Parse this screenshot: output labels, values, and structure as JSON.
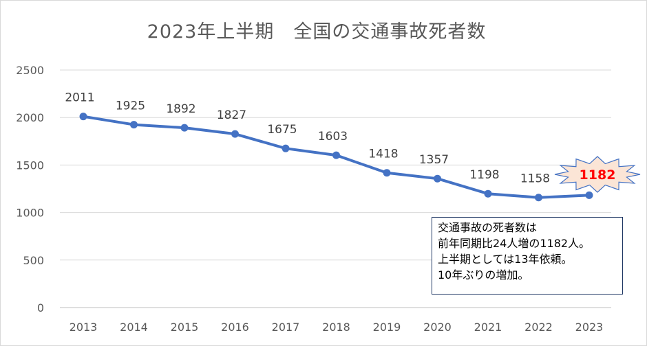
{
  "chart_data": {
    "type": "line",
    "title": "2023年上半期　全国の交通事故死者数",
    "categories": [
      "2013",
      "2014",
      "2015",
      "2016",
      "2017",
      "2018",
      "2019",
      "2020",
      "2021",
      "2022",
      "2023"
    ],
    "series": [
      {
        "values": [
          2011,
          1925,
          1892,
          1827,
          1675,
          1603,
          1418,
          1357,
          1198,
          1158,
          1182
        ]
      }
    ],
    "ylim": [
      0,
      2500
    ],
    "yticks": [
      0,
      500,
      1000,
      1500,
      2000,
      2500
    ],
    "grid": true,
    "colors": {
      "line": "#4472c4",
      "highlight_label": "#ff0000",
      "star_fill": "#fbe5d6",
      "star_stroke": "#4472c4"
    },
    "annotation": {
      "lines": [
        "交通事故の死者数は",
        "前年同期比24人増の1182人。",
        "上半期としては13年依頼。",
        "10年ぶりの増加。"
      ]
    }
  }
}
